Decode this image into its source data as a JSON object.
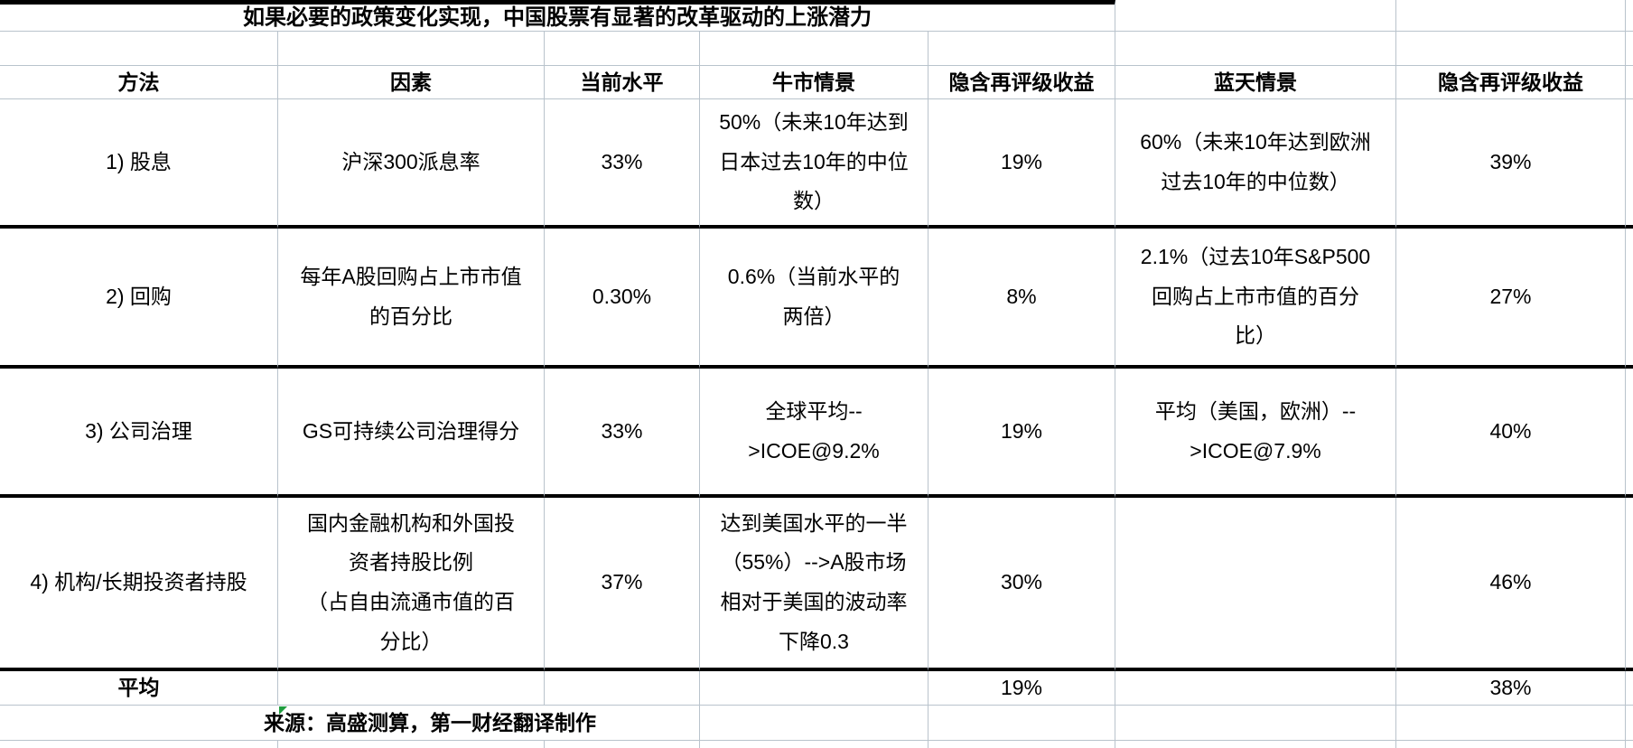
{
  "title": "如果必要的政策变化实现，中国股票有显著的改革驱动的上涨潜力",
  "table": {
    "headers": [
      "方法",
      "因素",
      "当前水平",
      "牛市情景",
      "隐含再评级收益",
      "蓝天情景",
      "隐含再评级收益"
    ],
    "rows": [
      {
        "method": "1) 股息",
        "factor": "沪深300派息率",
        "current": "33%",
        "bull": "50%（未来10年达到\n日本过去10年的中位\n数）",
        "bull_return": "19%",
        "blue": "60%（未来10年达到欧洲\n过去10年的中位数）",
        "blue_return": "39%"
      },
      {
        "method": "2) 回购",
        "factor": "每年A股回购占上市市值\n的百分比",
        "current": "0.30%",
        "bull": "0.6%（当前水平的\n两倍）",
        "bull_return": "8%",
        "blue": "2.1%（过去10年S&P500\n回购占上市市值的百分\n比）",
        "blue_return": "27%"
      },
      {
        "method": "3) 公司治理",
        "factor": "GS可持续公司治理得分",
        "current": "33%",
        "bull": "全球平均--\n>ICOE@9.2%",
        "bull_return": "19%",
        "blue": "平均（美国，欧洲）--\n>ICOE@7.9%",
        "blue_return": "40%"
      },
      {
        "method": "4) 机构/长期投资者持股",
        "factor": "国内金融机构和外国投\n资者持股比例\n（占自由流通市值的百\n分比）",
        "current": "37%",
        "bull": "达到美国水平的一半\n（55%）-->A股市场\n相对于美国的波动率\n下降0.3",
        "bull_return": "30%",
        "blue": "",
        "blue_return": "46%"
      }
    ],
    "average_row": {
      "label": "平均",
      "bull_return": "19%",
      "blue_return": "38%"
    }
  },
  "source_note": "来源：高盛测算，第一财经翻译制作",
  "colors": {
    "gridline": "#b9c3cc",
    "heavy_border": "#000000",
    "flag_green": "#1f9d3f",
    "background": "#ffffff"
  }
}
